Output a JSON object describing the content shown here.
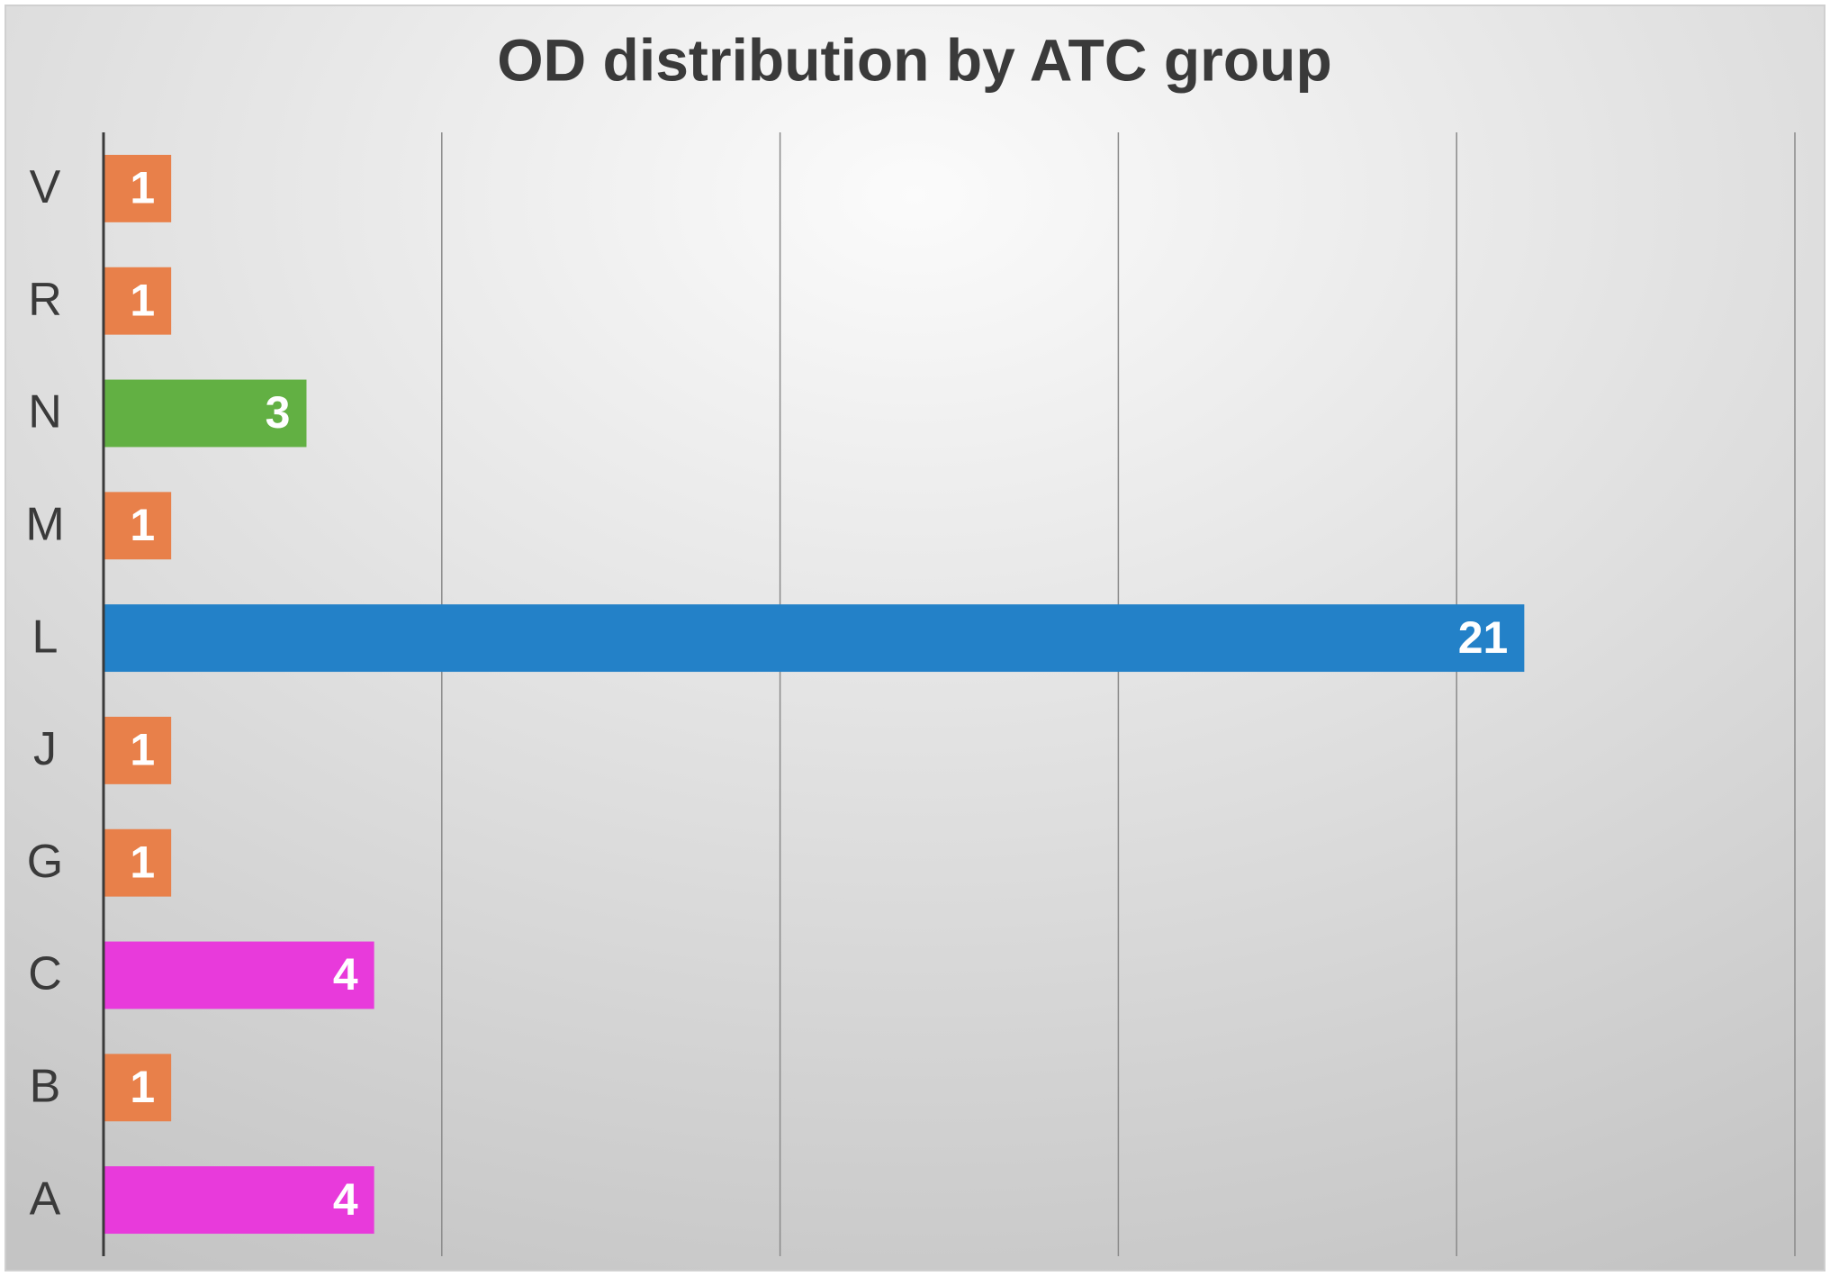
{
  "chart_data": {
    "type": "barh",
    "title": "OD distribution by ATC group",
    "categories": [
      "V",
      "R",
      "N",
      "M",
      "L",
      "J",
      "G",
      "C",
      "B",
      "A"
    ],
    "values": [
      1,
      1,
      3,
      1,
      21,
      1,
      1,
      4,
      1,
      4
    ],
    "colors": [
      "#e8804a",
      "#e8804a",
      "#62b043",
      "#e8804a",
      "#2381c8",
      "#e8804a",
      "#e8804a",
      "#e83adb",
      "#e8804a",
      "#e83adb"
    ],
    "xlim": [
      0,
      25
    ],
    "xticks": [
      0,
      5,
      10,
      15,
      20,
      25
    ],
    "grid": true
  }
}
